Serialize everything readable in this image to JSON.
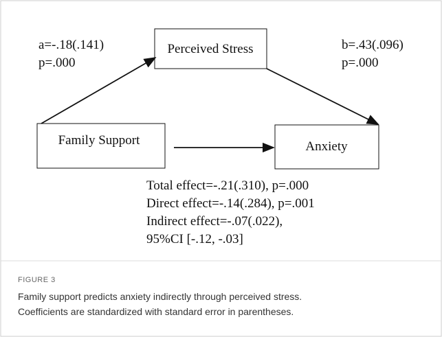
{
  "nodes": [
    {
      "label": "Perceived Stress"
    },
    {
      "label": "Family Support"
    },
    {
      "label": "Anxiety"
    }
  ],
  "paths": {
    "a": {
      "coef": "a=-.18(.141)",
      "p": "p=.000"
    },
    "b": {
      "coef": "b=.43(.096)",
      "p": "p=.000"
    }
  },
  "effects": [
    "Total effect=-.21(.310), p=.000",
    "Direct effect=-.14(.284), p=.001",
    "Indirect effect=-.07(.022),",
    "95%CI [-.12, -.03]"
  ],
  "figure": {
    "label": "FIGURE 3",
    "caption": [
      "Family support predicts anxiety indirectly through perceived stress.",
      "Coefficients are standardized with standard error in parentheses."
    ]
  }
}
